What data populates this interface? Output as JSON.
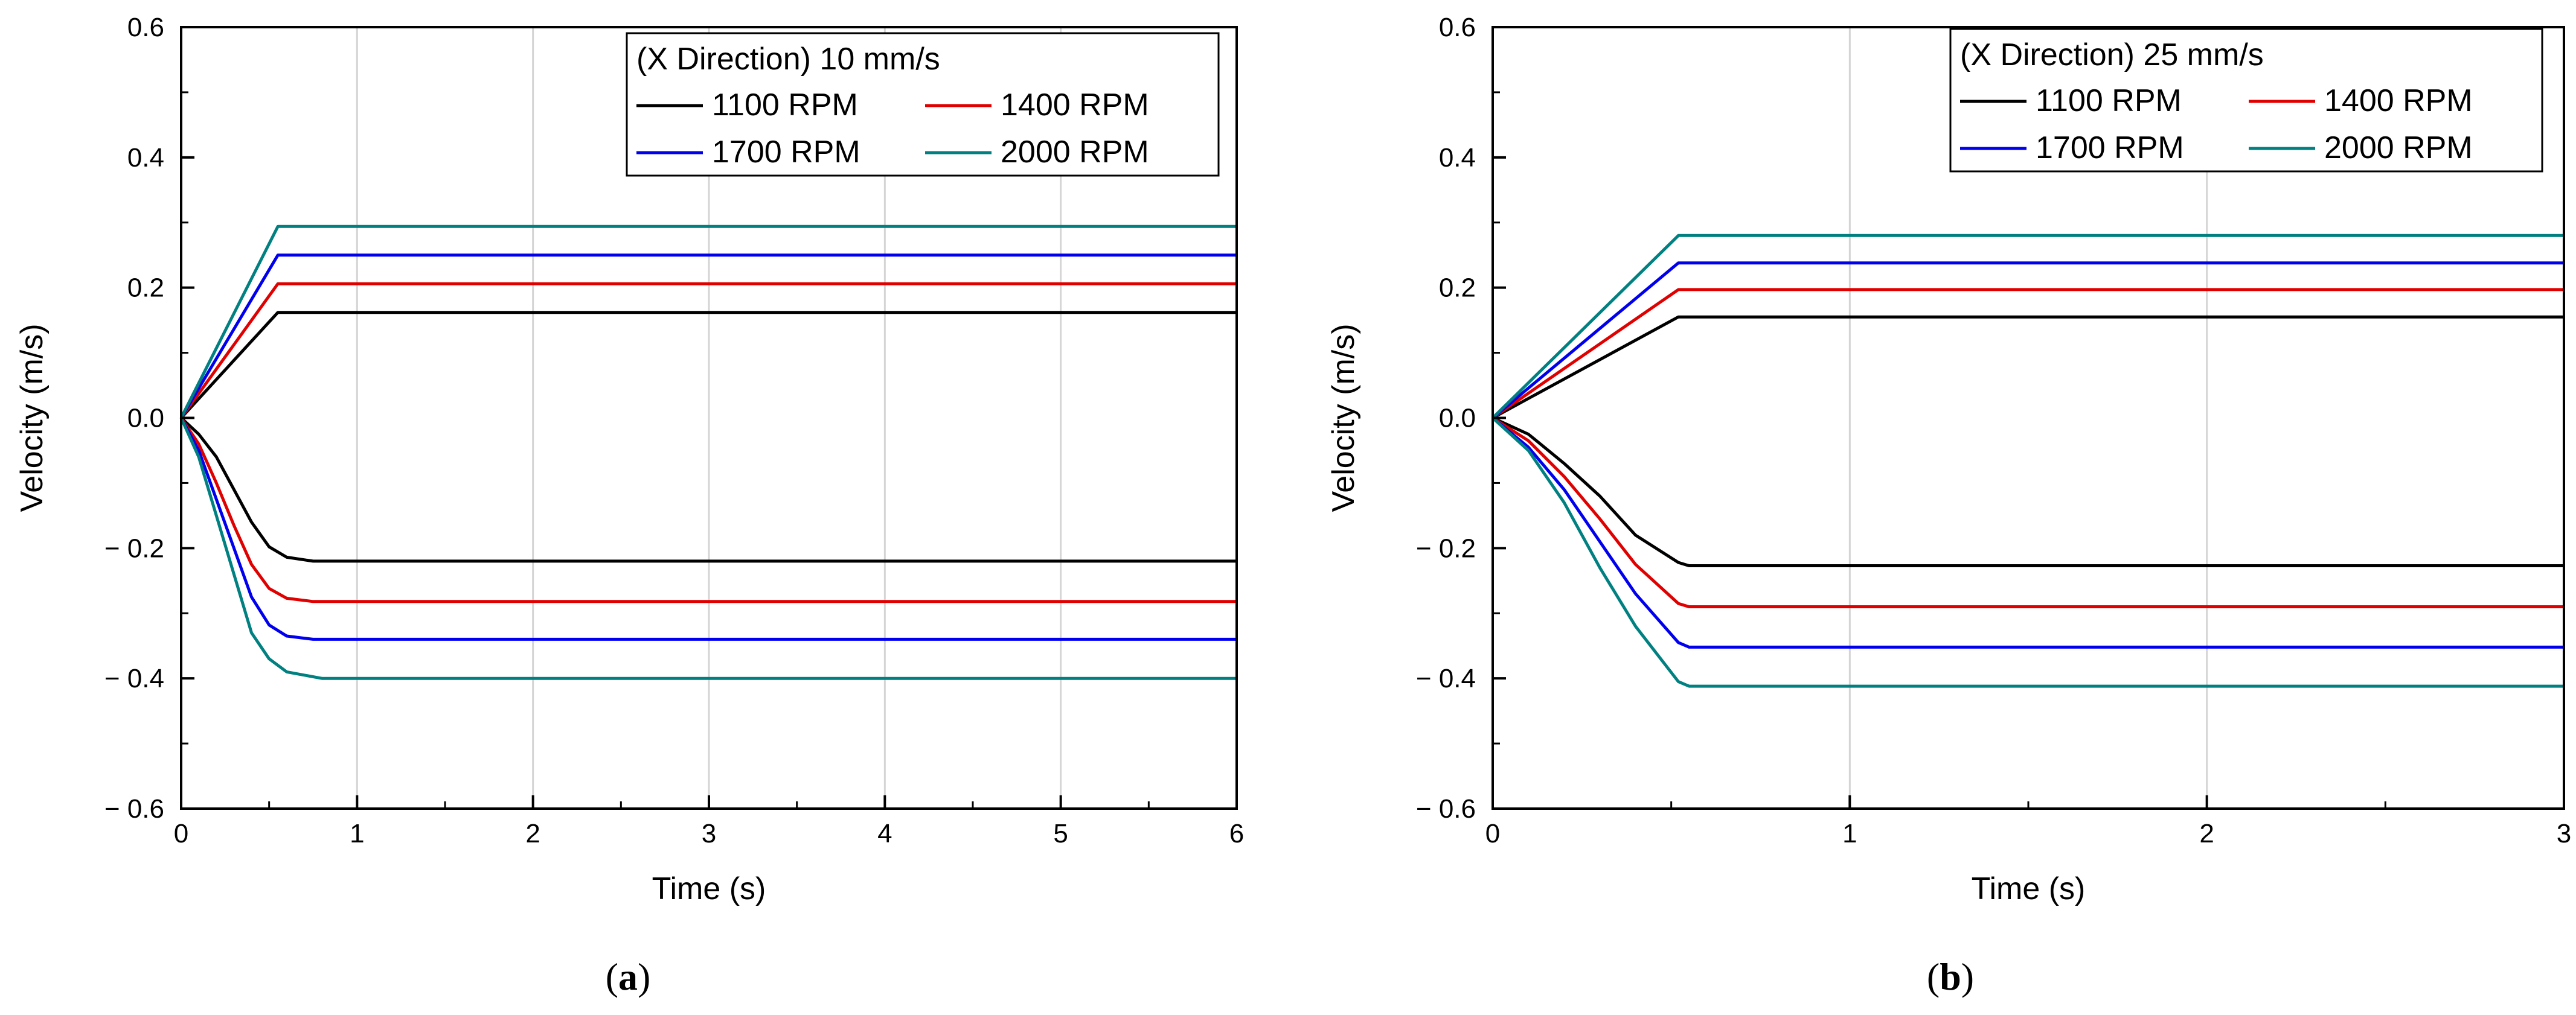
{
  "chart_data": [
    {
      "type": "line",
      "panel_label": "a",
      "legend_title": "(X Direction) 10 mm/s",
      "xlabel": "Time (s)",
      "ylabel": "Velocity (m/s)",
      "xlim": [
        0,
        6
      ],
      "ylim": [
        -0.6,
        0.6
      ],
      "x_ticks": [
        0,
        1,
        2,
        3,
        4,
        5,
        6
      ],
      "x_tick_labels": [
        "0",
        "1",
        "2",
        "3",
        "4",
        "5",
        "6"
      ],
      "y_ticks": [
        0.6,
        0.4,
        0.2,
        0.0,
        -0.2,
        -0.4,
        -0.6
      ],
      "y_tick_labels": [
        "0.6",
        "0.4",
        "0.2",
        "0.0",
        "− 0.2",
        "− 0.4",
        "− 0.6"
      ],
      "grid": true,
      "legend_position": "top-right",
      "series": [
        {
          "name": "1100 RPM",
          "color": "#000000",
          "upper": {
            "x": [
              0,
              0.55,
              6
            ],
            "y": [
              0,
              0.162,
              0.162
            ]
          },
          "lower": {
            "x": [
              0,
              0.1,
              0.2,
              0.3,
              0.4,
              0.5,
              0.6,
              0.75,
              6
            ],
            "y": [
              0,
              -0.025,
              -0.06,
              -0.11,
              -0.16,
              -0.198,
              -0.214,
              -0.22,
              -0.22
            ]
          }
        },
        {
          "name": "1400 RPM",
          "color": "#e00000",
          "upper": {
            "x": [
              0,
              0.55,
              6
            ],
            "y": [
              0,
              0.206,
              0.206
            ]
          },
          "lower": {
            "x": [
              0,
              0.1,
              0.2,
              0.3,
              0.4,
              0.5,
              0.6,
              0.75,
              6
            ],
            "y": [
              0,
              -0.04,
              -0.1,
              -0.165,
              -0.225,
              -0.262,
              -0.277,
              -0.282,
              -0.282
            ]
          }
        },
        {
          "name": "1700 RPM",
          "color": "#0000ee",
          "upper": {
            "x": [
              0,
              0.55,
              6
            ],
            "y": [
              0,
              0.25,
              0.25
            ]
          },
          "lower": {
            "x": [
              0,
              0.1,
              0.2,
              0.3,
              0.4,
              0.5,
              0.6,
              0.75,
              6
            ],
            "y": [
              0,
              -0.05,
              -0.125,
              -0.2,
              -0.275,
              -0.318,
              -0.335,
              -0.34,
              -0.34
            ]
          }
        },
        {
          "name": "2000 RPM",
          "color": "#008080",
          "upper": {
            "x": [
              0,
              0.55,
              6
            ],
            "y": [
              0,
              0.294,
              0.294
            ]
          },
          "lower": {
            "x": [
              0,
              0.1,
              0.2,
              0.3,
              0.4,
              0.5,
              0.6,
              0.8,
              6
            ],
            "y": [
              0,
              -0.06,
              -0.15,
              -0.24,
              -0.33,
              -0.37,
              -0.39,
              -0.4,
              -0.4
            ]
          }
        }
      ]
    },
    {
      "type": "line",
      "panel_label": "b",
      "legend_title": "(X Direction) 25 mm/s",
      "xlabel": "Time (s)",
      "ylabel": "Velocity (m/s)",
      "xlim": [
        0,
        3
      ],
      "ylim": [
        -0.6,
        0.6
      ],
      "x_ticks": [
        0,
        1,
        2,
        3
      ],
      "x_tick_labels": [
        "0",
        "1",
        "2",
        "3"
      ],
      "y_ticks": [
        0.6,
        0.4,
        0.2,
        0.0,
        -0.2,
        -0.4,
        -0.6
      ],
      "y_tick_labels": [
        "0.6",
        "0.4",
        "0.2",
        "0.0",
        "− 0.2",
        "− 0.4",
        "− 0.6"
      ],
      "grid": true,
      "legend_position": "top-right",
      "series": [
        {
          "name": "1100 RPM",
          "color": "#000000",
          "upper": {
            "x": [
              0,
              0.52,
              3
            ],
            "y": [
              0,
              0.155,
              0.155
            ]
          },
          "lower": {
            "x": [
              0,
              0.1,
              0.2,
              0.3,
              0.4,
              0.52,
              0.55,
              3
            ],
            "y": [
              0,
              -0.025,
              -0.07,
              -0.12,
              -0.18,
              -0.222,
              -0.227,
              -0.227
            ]
          }
        },
        {
          "name": "1400 RPM",
          "color": "#e00000",
          "upper": {
            "x": [
              0,
              0.52,
              3
            ],
            "y": [
              0,
              0.197,
              0.197
            ]
          },
          "lower": {
            "x": [
              0,
              0.1,
              0.2,
              0.3,
              0.4,
              0.52,
              0.55,
              3
            ],
            "y": [
              0,
              -0.035,
              -0.09,
              -0.155,
              -0.225,
              -0.285,
              -0.29,
              -0.29
            ]
          }
        },
        {
          "name": "1700 RPM",
          "color": "#0000ee",
          "upper": {
            "x": [
              0,
              0.52,
              3
            ],
            "y": [
              0,
              0.238,
              0.238
            ]
          },
          "lower": {
            "x": [
              0,
              0.1,
              0.2,
              0.3,
              0.4,
              0.52,
              0.55,
              3
            ],
            "y": [
              0,
              -0.045,
              -0.11,
              -0.19,
              -0.27,
              -0.345,
              -0.352,
              -0.352
            ]
          }
        },
        {
          "name": "2000 RPM",
          "color": "#008080",
          "upper": {
            "x": [
              0,
              0.52,
              3
            ],
            "y": [
              0,
              0.28,
              0.28
            ]
          },
          "lower": {
            "x": [
              0,
              0.1,
              0.2,
              0.3,
              0.4,
              0.52,
              0.55,
              3
            ],
            "y": [
              0,
              -0.05,
              -0.13,
              -0.23,
              -0.32,
              -0.405,
              -0.412,
              -0.412
            ]
          }
        }
      ]
    }
  ]
}
